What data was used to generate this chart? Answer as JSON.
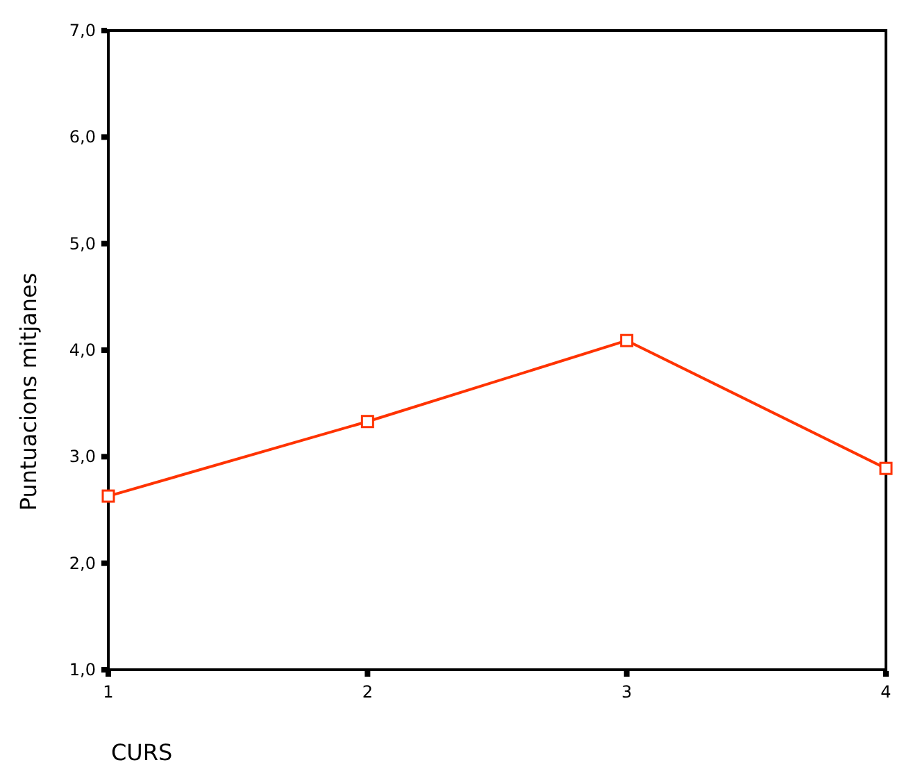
{
  "chart_data": {
    "type": "line",
    "xlabel": "CURS",
    "ylabel": "Puntuacions mitjanes",
    "x": [
      1,
      2,
      3,
      4
    ],
    "series": [
      {
        "color": "#ff3300",
        "values": [
          2.63,
          3.33,
          4.09,
          2.89
        ]
      }
    ],
    "xlim": [
      1,
      4
    ],
    "xticks": [
      1,
      2,
      3,
      4
    ],
    "ylim": [
      1,
      7
    ],
    "yticks": [
      {
        "value": 1,
        "label": "1,0"
      },
      {
        "value": 2,
        "label": "2,0"
      },
      {
        "value": 3,
        "label": "3,0"
      },
      {
        "value": 4,
        "label": "4,0"
      },
      {
        "value": 5,
        "label": "5,0"
      },
      {
        "value": 6,
        "label": "6,0"
      },
      {
        "value": 7,
        "label": "7,0"
      }
    ],
    "grid": false,
    "marker": "square",
    "line_style": "solid"
  }
}
